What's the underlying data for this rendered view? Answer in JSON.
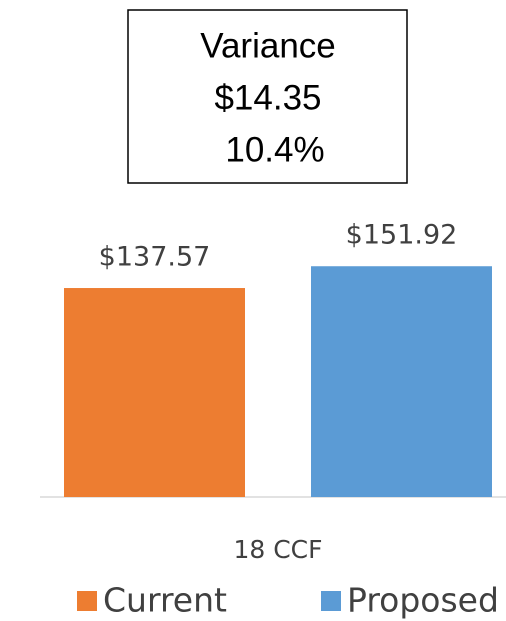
{
  "chart_data": {
    "type": "bar",
    "annotation": [
      "Variance",
      "$14.35",
      "10.4%"
    ],
    "categories": [
      "18 CCF"
    ],
    "series": [
      {
        "name": "Current",
        "color": "#ed7d31",
        "values": [
          137.57
        ],
        "value_labels": [
          "$137.57"
        ]
      },
      {
        "name": "Proposed",
        "color": "#5b9bd5",
        "values": [
          151.92
        ],
        "value_labels": [
          "$151.92"
        ]
      }
    ],
    "legend": "bottom"
  }
}
